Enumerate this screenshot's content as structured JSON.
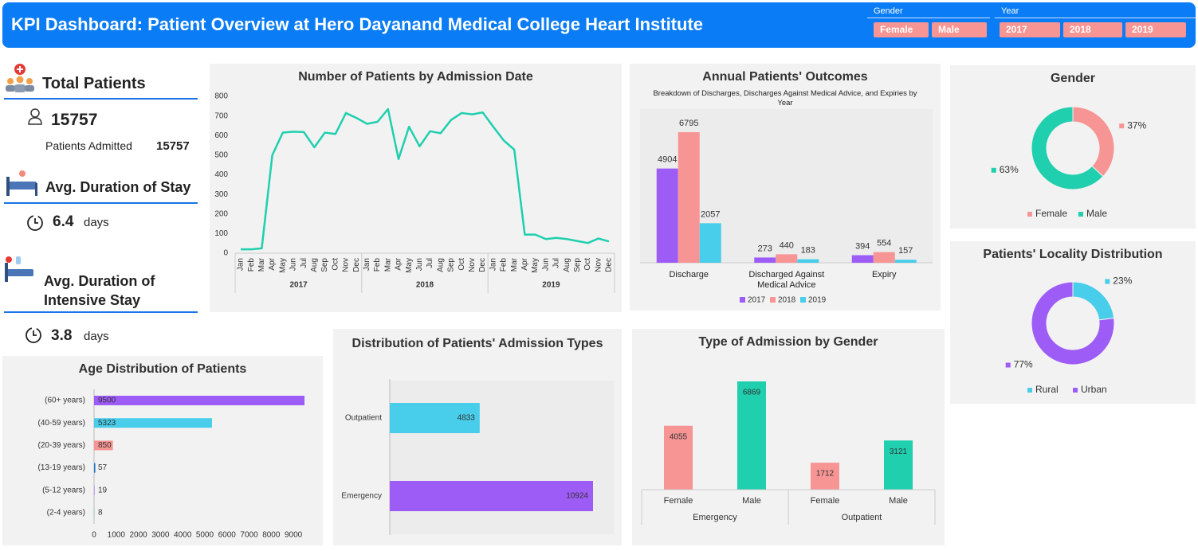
{
  "header": {
    "title": "KPI Dashboard: Patient Overview at Hero Dayanand Medical College Heart Institute"
  },
  "slicers": [
    {
      "label": "Gender",
      "items": [
        "Female",
        "Male"
      ]
    },
    {
      "label": "Year",
      "items": [
        "2017",
        "2018",
        "2019"
      ]
    }
  ],
  "kpis": {
    "total_patients": {
      "title": "Total Patients",
      "value": 15757,
      "sub_label": "Patients Admitted",
      "sub_value": 15757
    },
    "avg_stay": {
      "title": "Avg. Duration of Stay",
      "value": 6.4,
      "unit": "days"
    },
    "avg_intensive_stay": {
      "title": "Avg. Duration of Intensive Stay",
      "value": 3.8,
      "unit": "days"
    }
  },
  "chart_data": [
    {
      "type": "line",
      "title": "Number of Patients by Admission Date",
      "categories": [
        "Jan",
        "Feb",
        "Mar",
        "Apr",
        "May",
        "Jun",
        "Jul",
        "Aug",
        "Sep",
        "Oct",
        "Nov",
        "Dec",
        "Jan",
        "Feb",
        "Mar",
        "Apr",
        "May",
        "Jun",
        "Jul",
        "Aug",
        "Sep",
        "Oct",
        "Nov",
        "Dec",
        "Jan",
        "Feb",
        "Mar",
        "Apr",
        "May",
        "Jun",
        "Jul",
        "Aug",
        "Sep",
        "Oct",
        "Nov",
        "Dec"
      ],
      "groups": [
        "2017",
        "2018",
        "2019"
      ],
      "values": [
        20,
        20,
        25,
        500,
        615,
        620,
        618,
        540,
        615,
        608,
        715,
        690,
        660,
        670,
        735,
        480,
        645,
        545,
        622,
        612,
        680,
        715,
        708,
        718,
        645,
        575,
        528,
        95,
        95,
        72,
        78,
        72,
        62,
        52,
        75,
        60
      ],
      "color": "#1fcfae",
      "ylim": [
        0,
        800
      ],
      "yticks": [
        0,
        100,
        200,
        300,
        400,
        500,
        600,
        700,
        800
      ]
    },
    {
      "type": "grouped-bar",
      "title": "Annual Patients' Outcomes",
      "subtitle": "Breakdown of Discharges, Discharges Against Medical Advice, and Expiries by Year",
      "categories": [
        "Discharge",
        "Discharged Against Medical Advice",
        "Expiry"
      ],
      "series": [
        {
          "name": "2017",
          "color": "#9e5cf7",
          "values": [
            4904,
            273,
            394
          ]
        },
        {
          "name": "2018",
          "color": "#f79494",
          "values": [
            6795,
            440,
            554
          ]
        },
        {
          "name": "2019",
          "color": "#48cdea",
          "values": [
            2057,
            183,
            157
          ]
        }
      ],
      "legend": "bottom"
    },
    {
      "type": "donut",
      "title": "Gender",
      "categories": [
        "Female",
        "Male"
      ],
      "values": [
        37,
        63
      ],
      "value_labels": [
        "37%",
        "63%"
      ],
      "colors": [
        "#f79494",
        "#1fcfae"
      ],
      "legend": "bottom"
    },
    {
      "type": "donut",
      "title": "Patients' Locality Distribution",
      "categories": [
        "Rural",
        "Urban"
      ],
      "values": [
        23,
        77
      ],
      "value_labels": [
        "23%",
        "77%"
      ],
      "colors": [
        "#48cdea",
        "#9e5cf7"
      ],
      "legend": "bottom"
    },
    {
      "type": "hbar",
      "title": "Age Distribution of Patients",
      "categories": [
        "(60+ years)",
        "(40-59 years)",
        "(20-39 years)",
        "(13-19 years)",
        "(5-12 years)",
        "(2-4 years)"
      ],
      "values": [
        9500,
        5323,
        850,
        57,
        19,
        8
      ],
      "colors": [
        "#9e5cf7",
        "#48cdea",
        "#f79494",
        "#1f77c8",
        "#9e5cf7",
        "#48cdea"
      ],
      "xlim": [
        0,
        9500
      ],
      "xticks": [
        0,
        1000,
        2000,
        3000,
        4000,
        5000,
        6000,
        7000,
        8000,
        9000
      ]
    },
    {
      "type": "hbar",
      "title": "Distribution of Patients' Admission Types",
      "categories": [
        "Outpatient",
        "Emergency"
      ],
      "values": [
        4833,
        10924
      ],
      "colors": [
        "#48cdea",
        "#9e5cf7"
      ]
    },
    {
      "type": "bar",
      "title": "Type of Admission by Gender",
      "categories": [
        "Female",
        "Male",
        "Female",
        "Male"
      ],
      "groups": [
        "Emergency",
        "Outpatient"
      ],
      "values": [
        4055,
        6869,
        1712,
        3121
      ],
      "colors": [
        "#f79494",
        "#1fcfae",
        "#f79494",
        "#1fcfae"
      ]
    }
  ]
}
